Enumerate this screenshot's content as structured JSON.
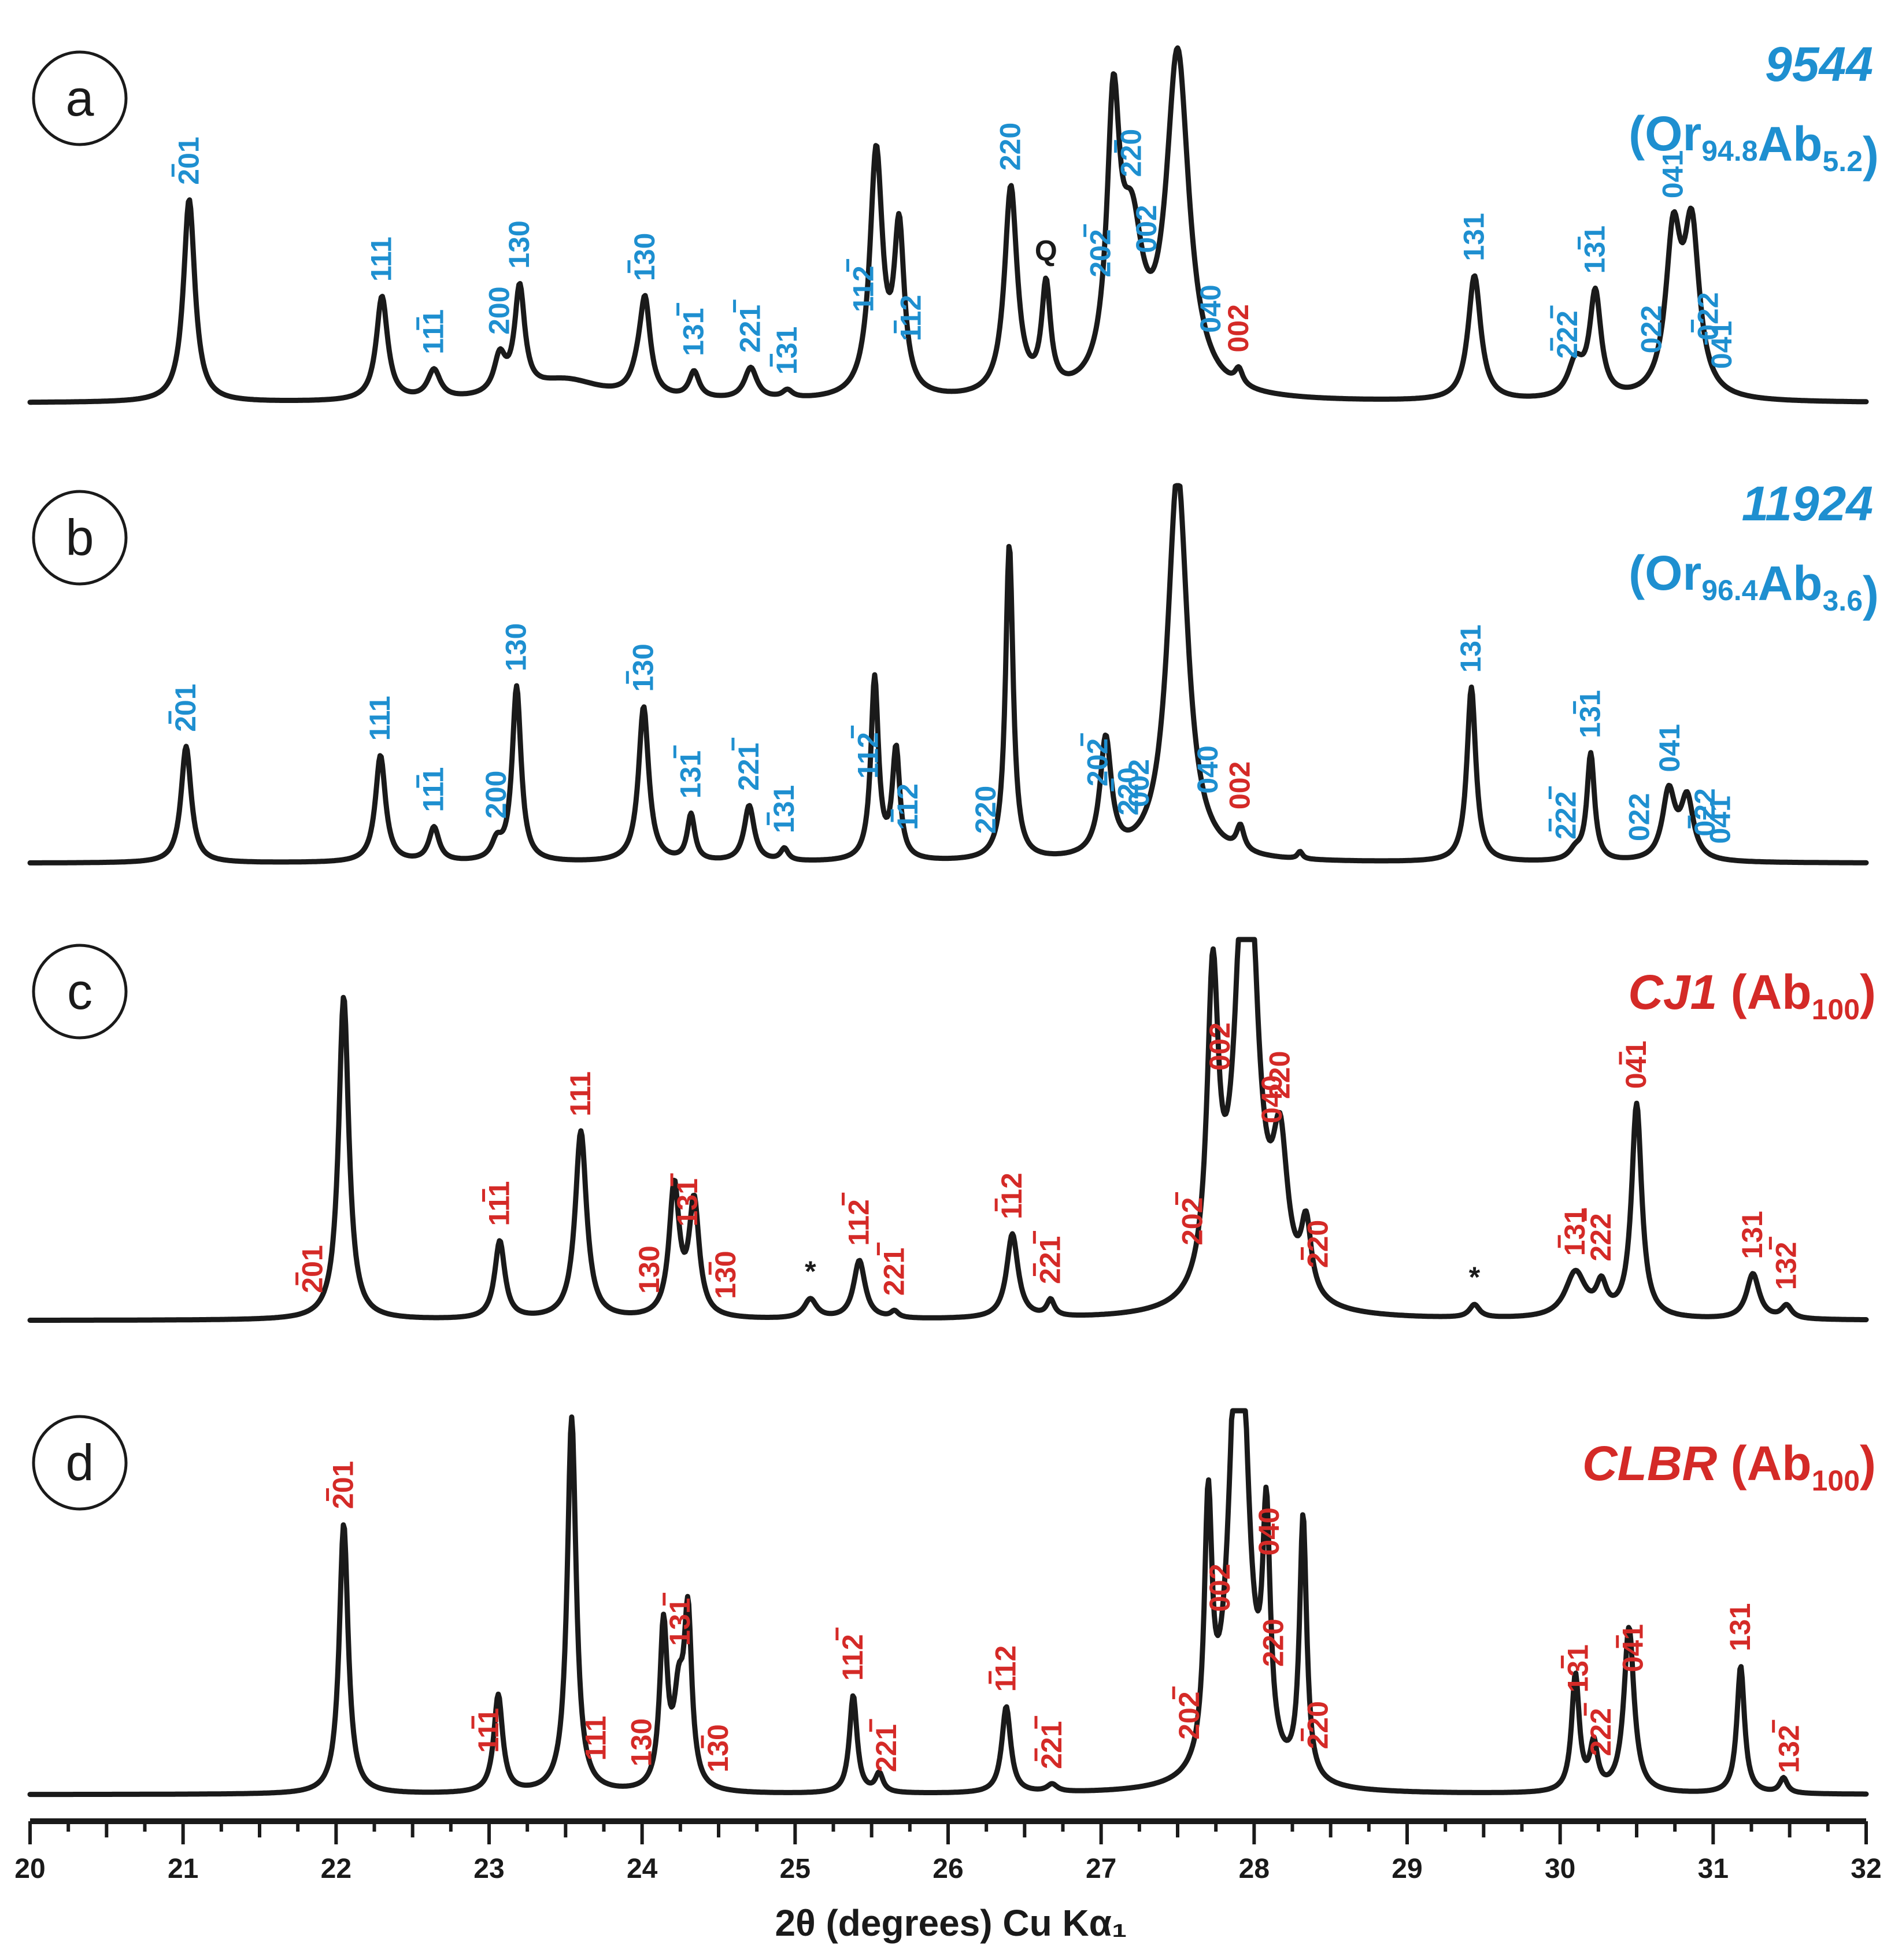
{
  "colors": {
    "blue": "#1e8fd0",
    "red": "#d42a27",
    "black": "#1a1a1a"
  },
  "chart_data": {
    "type": "line",
    "xlabel": "2θ (degrees) Cu Kα₁",
    "xlim": [
      20,
      32
    ],
    "xticks": [
      "20",
      "21",
      "22",
      "23",
      "24",
      "25",
      "26",
      "27",
      "28",
      "29",
      "30",
      "31",
      "32"
    ],
    "panels": [
      {
        "letter": "a",
        "name": "9544",
        "comp_main": "Or",
        "comp_sub1": "94.8",
        "comp_mid": "Ab",
        "comp_sub2": "5.2",
        "color": "blue",
        "peaks": [
          [
            21.04,
            0.78,
            0.045
          ],
          [
            22.3,
            0.4,
            0.045
          ],
          [
            22.64,
            0.11,
            0.05
          ],
          [
            23.07,
            0.14,
            0.045
          ],
          [
            23.2,
            0.4,
            0.04
          ],
          [
            23.5,
            0.08,
            0.3
          ],
          [
            23.98,
            0.08,
            0.06
          ],
          [
            24.02,
            0.33,
            0.04
          ],
          [
            24.34,
            0.1,
            0.04
          ],
          [
            24.71,
            0.12,
            0.05
          ],
          [
            24.95,
            0.03,
            0.04
          ],
          [
            25.53,
            0.94,
            0.05
          ],
          [
            25.68,
            0.62,
            0.04
          ],
          [
            26.41,
            0.8,
            0.05
          ],
          [
            26.64,
            0.4,
            0.035
          ],
          [
            27.08,
            1.0,
            0.05
          ],
          [
            27.2,
            0.55,
            0.09
          ],
          [
            27.5,
            1.3,
            0.09
          ],
          [
            27.9,
            0.06,
            0.03
          ],
          [
            29.44,
            0.48,
            0.05
          ],
          [
            30.1,
            0.13,
            0.06
          ],
          [
            30.23,
            0.4,
            0.045
          ],
          [
            30.74,
            0.6,
            0.06
          ],
          [
            30.86,
            0.62,
            0.06
          ]
        ],
        "labels": [
          {
            "x": 21.04,
            "text": "201",
            "bar": "first",
            "color": "blue"
          },
          {
            "x": 22.3,
            "text": "111",
            "color": "blue"
          },
          {
            "x": 22.64,
            "text": "111",
            "bar": "middle",
            "color": "blue"
          },
          {
            "x": 23.07,
            "text": "200",
            "color": "blue"
          },
          {
            "x": 23.2,
            "text": "130",
            "color": "blue"
          },
          {
            "x": 24.02,
            "text": "130",
            "bar": "first",
            "color": "blue"
          },
          {
            "x": 24.34,
            "text": "131",
            "bar": "last",
            "color": "blue"
          },
          {
            "x": 24.71,
            "text": "221",
            "bar": "last",
            "color": "blue"
          },
          {
            "x": 24.95,
            "text": "131",
            "bar": "first",
            "color": "blue"
          },
          {
            "x": 25.45,
            "text": "112",
            "bar": "last",
            "color": "blue"
          },
          {
            "x": 25.76,
            "text": "112",
            "bar": "first",
            "color": "blue"
          },
          {
            "x": 26.41,
            "text": "220",
            "color": "blue"
          },
          {
            "x": 26.64,
            "text": "Q",
            "color": "black"
          },
          {
            "x": 27.0,
            "text": "202",
            "bar": "last",
            "color": "blue"
          },
          {
            "x": 27.2,
            "text": "220",
            "bar": "middle",
            "color": "blue"
          },
          {
            "x": 27.3,
            "text": "002",
            "color": "blue"
          },
          {
            "x": 27.72,
            "text": "040",
            "color": "blue"
          },
          {
            "x": 27.9,
            "text": "002",
            "color": "red"
          },
          {
            "x": 29.44,
            "text": "131",
            "color": "blue"
          },
          {
            "x": 30.05,
            "text": "222",
            "bar": "first-last",
            "color": "blue"
          },
          {
            "x": 30.23,
            "text": "131",
            "bar": "middle",
            "color": "blue"
          },
          {
            "x": 30.6,
            "text": "022",
            "color": "blue"
          },
          {
            "x": 30.74,
            "text": "041",
            "color": "blue"
          },
          {
            "x": 30.97,
            "text": "022",
            "bar": "first",
            "color": "blue"
          },
          {
            "x": 31.06,
            "text": "041",
            "bar": "middle",
            "color": "blue"
          }
        ]
      },
      {
        "letter": "b",
        "name": "11924",
        "comp_main": "Or",
        "comp_sub1": "96.4",
        "comp_mid": "Ab",
        "comp_sub2": "3.6",
        "color": "blue",
        "peaks": [
          [
            21.02,
            0.48,
            0.04
          ],
          [
            22.29,
            0.44,
            0.04
          ],
          [
            22.64,
            0.14,
            0.04
          ],
          [
            23.05,
            0.07,
            0.04
          ],
          [
            23.18,
            0.72,
            0.035
          ],
          [
            24.01,
            0.64,
            0.04
          ],
          [
            24.32,
            0.19,
            0.03
          ],
          [
            24.7,
            0.23,
            0.04
          ],
          [
            24.93,
            0.05,
            0.03
          ],
          [
            25.52,
            0.75,
            0.03
          ],
          [
            25.66,
            0.45,
            0.03
          ],
          [
            26.4,
            1.3,
            0.03
          ],
          [
            27.03,
            0.48,
            0.045
          ],
          [
            27.5,
            1.6,
            0.08
          ],
          [
            27.91,
            0.1,
            0.03
          ],
          [
            28.3,
            0.03,
            0.02
          ],
          [
            29.42,
            0.72,
            0.035
          ],
          [
            30.1,
            0.04,
            0.05
          ],
          [
            30.2,
            0.44,
            0.03
          ],
          [
            30.71,
            0.28,
            0.05
          ],
          [
            30.83,
            0.25,
            0.05
          ]
        ],
        "labels": [
          {
            "x": 21.02,
            "text": "201",
            "bar": "first",
            "color": "blue"
          },
          {
            "x": 22.29,
            "text": "111",
            "color": "blue"
          },
          {
            "x": 22.64,
            "text": "111",
            "bar": "middle",
            "color": "blue"
          },
          {
            "x": 23.05,
            "text": "200",
            "color": "blue"
          },
          {
            "x": 23.18,
            "text": "130",
            "color": "blue"
          },
          {
            "x": 24.01,
            "text": "130",
            "bar": "first",
            "color": "blue"
          },
          {
            "x": 24.32,
            "text": "131",
            "bar": "last",
            "color": "blue"
          },
          {
            "x": 24.7,
            "text": "221",
            "bar": "last",
            "color": "blue"
          },
          {
            "x": 24.93,
            "text": "131",
            "bar": "first",
            "color": "blue"
          },
          {
            "x": 25.48,
            "text": "112",
            "bar": "last",
            "color": "blue"
          },
          {
            "x": 25.74,
            "text": "112",
            "bar": "first",
            "color": "blue"
          },
          {
            "x": 26.25,
            "text": "220",
            "color": "blue"
          },
          {
            "x": 26.98,
            "text": "202",
            "bar": "last",
            "color": "blue"
          },
          {
            "x": 27.18,
            "text": "220",
            "bar": "middle",
            "color": "blue"
          },
          {
            "x": 27.25,
            "text": "002",
            "color": "blue"
          },
          {
            "x": 27.7,
            "text": "040",
            "color": "blue"
          },
          {
            "x": 27.91,
            "text": "002",
            "color": "red"
          },
          {
            "x": 29.42,
            "text": "131",
            "color": "blue"
          },
          {
            "x": 30.04,
            "text": "222",
            "bar": "first-last",
            "color": "blue"
          },
          {
            "x": 30.2,
            "text": "131",
            "bar": "middle",
            "color": "blue"
          },
          {
            "x": 30.52,
            "text": "022",
            "color": "blue"
          },
          {
            "x": 30.72,
            "text": "041",
            "color": "blue"
          },
          {
            "x": 30.95,
            "text": "022",
            "bar": "first",
            "color": "blue"
          },
          {
            "x": 31.05,
            "text": "041",
            "bar": "middle",
            "color": "blue"
          }
        ]
      },
      {
        "letter": "c",
        "name": "CJ1",
        "comp_main": "Ab",
        "comp_sub1": "100",
        "comp_mid": "",
        "comp_sub2": "",
        "color": "red",
        "peaks": [
          [
            22.05,
            1.0,
            0.04
          ],
          [
            23.07,
            0.24,
            0.04
          ],
          [
            23.6,
            0.58,
            0.045
          ],
          [
            24.21,
            0.4,
            0.04
          ],
          [
            24.34,
            0.35,
            0.04
          ],
          [
            25.1,
            0.06,
            0.05
          ],
          [
            25.42,
            0.18,
            0.045
          ],
          [
            25.65,
            0.02,
            0.03
          ],
          [
            26.42,
            0.26,
            0.045
          ],
          [
            26.67,
            0.05,
            0.03
          ],
          [
            27.73,
            0.95,
            0.045
          ],
          [
            27.95,
            1.6,
            0.08
          ],
          [
            28.17,
            0.43,
            0.06
          ],
          [
            28.34,
            0.22,
            0.04
          ],
          [
            29.44,
            0.04,
            0.04
          ],
          [
            30.1,
            0.14,
            0.08
          ],
          [
            30.27,
            0.09,
            0.04
          ],
          [
            30.5,
            0.66,
            0.04
          ],
          [
            31.26,
            0.14,
            0.05
          ],
          [
            31.48,
            0.04,
            0.04
          ]
        ],
        "labels": [
          {
            "x": 21.85,
            "text": "201",
            "bar": "first",
            "color": "red"
          },
          {
            "x": 23.07,
            "text": "111",
            "bar": "middle",
            "color": "red"
          },
          {
            "x": 23.6,
            "text": "111",
            "color": "red"
          },
          {
            "x": 24.05,
            "text": "130",
            "color": "red"
          },
          {
            "x": 24.3,
            "text": "131",
            "bar": "last",
            "color": "red"
          },
          {
            "x": 24.55,
            "text": "130",
            "bar": "middle",
            "color": "red"
          },
          {
            "x": 25.1,
            "text": "*",
            "color": "black"
          },
          {
            "x": 25.42,
            "text": "112",
            "bar": "last",
            "color": "red"
          },
          {
            "x": 25.65,
            "text": "221",
            "bar": "last",
            "color": "red"
          },
          {
            "x": 26.42,
            "text": "112",
            "bar": "first",
            "color": "red"
          },
          {
            "x": 26.67,
            "text": "221",
            "bar": "first-last",
            "color": "red"
          },
          {
            "x": 27.6,
            "text": "202",
            "bar": "last",
            "color": "red"
          },
          {
            "x": 27.78,
            "text": "002",
            "color": "red"
          },
          {
            "x": 28.12,
            "text": "040",
            "color": "red"
          },
          {
            "x": 28.17,
            "text": "220",
            "color": "red"
          },
          {
            "x": 28.42,
            "text": "220",
            "bar": "first",
            "color": "red"
          },
          {
            "x": 29.44,
            "text": "*",
            "color": "black"
          },
          {
            "x": 30.1,
            "text": "131",
            "bar": "first",
            "color": "red"
          },
          {
            "x": 30.27,
            "text": "222",
            "bar": "last",
            "color": "red"
          },
          {
            "x": 30.5,
            "text": "041",
            "bar": "middle",
            "color": "red"
          },
          {
            "x": 31.26,
            "text": "131",
            "color": "red"
          },
          {
            "x": 31.48,
            "text": "132",
            "bar": "last",
            "color": "red"
          }
        ]
      },
      {
        "letter": "d",
        "name": "CLBR",
        "comp_main": "Ab",
        "comp_sub1": "100",
        "comp_mid": "",
        "comp_sub2": "",
        "color": "red",
        "peaks": [
          [
            22.05,
            0.72,
            0.035
          ],
          [
            23.06,
            0.26,
            0.035
          ],
          [
            23.54,
            1.0,
            0.035
          ],
          [
            24.14,
            0.43,
            0.03
          ],
          [
            24.24,
            0.22,
            0.04
          ],
          [
            24.3,
            0.44,
            0.03
          ],
          [
            25.38,
            0.26,
            0.03
          ],
          [
            25.55,
            0.05,
            0.03
          ],
          [
            26.38,
            0.23,
            0.035
          ],
          [
            26.68,
            0.02,
            0.04
          ],
          [
            27.7,
            0.68,
            0.03
          ],
          [
            27.9,
            1.4,
            0.07
          ],
          [
            28.08,
            0.62,
            0.03
          ],
          [
            28.32,
            0.7,
            0.028
          ],
          [
            30.1,
            0.31,
            0.03
          ],
          [
            30.22,
            0.12,
            0.03
          ],
          [
            30.45,
            0.44,
            0.04
          ],
          [
            31.18,
            0.34,
            0.03
          ],
          [
            31.46,
            0.04,
            0.03
          ]
        ],
        "labels": [
          {
            "x": 22.05,
            "text": "201",
            "bar": "first",
            "color": "red"
          },
          {
            "x": 23.0,
            "text": "111",
            "bar": "middle",
            "color": "red"
          },
          {
            "x": 23.7,
            "text": "111",
            "color": "red"
          },
          {
            "x": 24.0,
            "text": "130",
            "color": "red"
          },
          {
            "x": 24.25,
            "text": "131",
            "bar": "last",
            "color": "red"
          },
          {
            "x": 24.5,
            "text": "130",
            "bar": "middle",
            "color": "red"
          },
          {
            "x": 25.38,
            "text": "112",
            "bar": "last",
            "color": "red"
          },
          {
            "x": 25.6,
            "text": "221",
            "bar": "last",
            "color": "red"
          },
          {
            "x": 26.38,
            "text": "112",
            "bar": "first",
            "color": "red"
          },
          {
            "x": 26.68,
            "text": "221",
            "bar": "first-last",
            "color": "red"
          },
          {
            "x": 27.58,
            "text": "202",
            "bar": "last",
            "color": "red"
          },
          {
            "x": 27.78,
            "text": "002",
            "color": "red"
          },
          {
            "x": 28.1,
            "text": "040",
            "color": "red"
          },
          {
            "x": 28.13,
            "text": "220",
            "color": "red"
          },
          {
            "x": 28.42,
            "text": "220",
            "bar": "first",
            "color": "red"
          },
          {
            "x": 30.12,
            "text": "131",
            "bar": "middle",
            "color": "red"
          },
          {
            "x": 30.27,
            "text": "222",
            "bar": "last",
            "color": "red"
          },
          {
            "x": 30.48,
            "text": "041",
            "bar": "middle",
            "color": "red"
          },
          {
            "x": 31.18,
            "text": "131",
            "color": "red"
          },
          {
            "x": 31.5,
            "text": "132",
            "bar": "last",
            "color": "red"
          }
        ]
      }
    ]
  }
}
